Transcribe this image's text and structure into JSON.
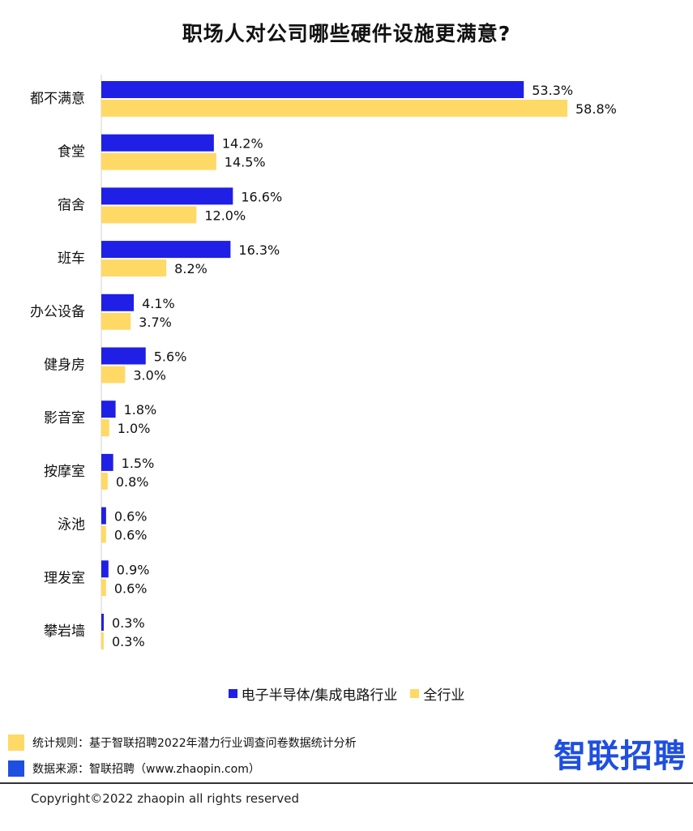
{
  "title": "职场人对公司哪些硬件设施更满意?",
  "chart_data": {
    "type": "bar",
    "orientation": "horizontal",
    "categories": [
      "都不满意",
      "食堂",
      "宿舍",
      "班车",
      "办公设备",
      "健身房",
      "影音室",
      "按摩室",
      "泳池",
      "理发室",
      "攀岩墙"
    ],
    "series": [
      {
        "name": "电子半导体/集成电路行业",
        "color": "#1f1fe6",
        "values": [
          53.3,
          14.2,
          16.6,
          16.3,
          4.1,
          5.6,
          1.8,
          1.5,
          0.6,
          0.9,
          0.3
        ],
        "labels": [
          "53.3%",
          "14.2%",
          "16.6%",
          "16.3%",
          "4.1%",
          "5.6%",
          "1.8%",
          "1.5%",
          "0.6%",
          "0.9%",
          "0.3%"
        ]
      },
      {
        "name": "全行业",
        "color": "#ffd966",
        "values": [
          58.8,
          14.5,
          12.0,
          8.2,
          3.7,
          3.0,
          1.0,
          0.8,
          0.6,
          0.6,
          0.3
        ],
        "labels": [
          "58.8%",
          "14.5%",
          "12.0%",
          "8.2%",
          "3.7%",
          "3.0%",
          "1.0%",
          "0.8%",
          "0.6%",
          "0.6%",
          "0.3%"
        ]
      }
    ],
    "legend_position": "bottom",
    "grid": false
  },
  "notes": {
    "rule": "统计规则：基于智联招聘2022年潜力行业调查问卷数据统计分析",
    "source": "数据来源：智联招聘（www.zhaopin.com）",
    "rule_color": "#ffd966",
    "source_color": "#1f4fe0"
  },
  "logo_text": "智联招聘",
  "copyright": "Copyright©2022 zhaopin all rights reserved"
}
